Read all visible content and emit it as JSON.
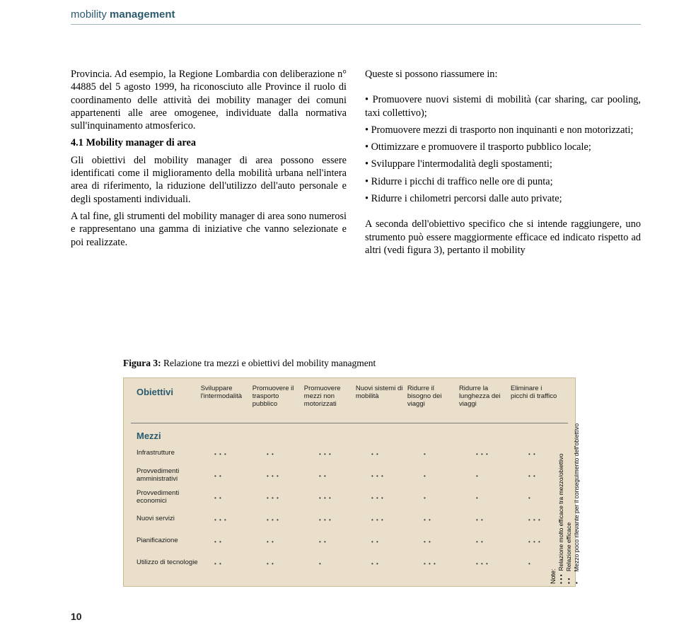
{
  "header": {
    "light": "mobility ",
    "bold": "management"
  },
  "left_col": {
    "p1": "Provincia. Ad esempio, la Regione Lombardia con deliberazione n° 44885 del 5 agosto 1999, ha riconosciuto alle Province il ruolo di coordinamento delle attività dei mobility manager dei comuni appartenenti alle aree omogenee, individuate dalla normativa sull'inquinamento atmosferico.",
    "sub": "4.1 Mobility manager di area",
    "p2": "Gli obiettivi del mobility manager di area possono essere identificati come il miglioramento della mobilità urbana nell'intera area di riferimento, la riduzione dell'utilizzo dell'auto personale e degli spostamenti individuali.",
    "p3": "A tal fine, gli strumenti del mobility manager di area sono numerosi e rappresentano una gamma di iniziative che vanno selezionate e poi realizzate."
  },
  "right_col": {
    "intro": "Queste si possono riassumere in:",
    "b1": "• Promuovere nuovi sistemi di mobilità (car sharing, car pooling, taxi collettivo);",
    "b2": "• Promuovere mezzi di trasporto non inquinanti e non motorizzati;",
    "b3": "• Ottimizzare e promuovere il trasporto pubblico locale;",
    "b4": "• Sviluppare l'intermodalità degli spostamenti;",
    "b5": "• Ridurre i picchi di traffico nelle ore di punta;",
    "b6": "• Ridurre i chilometri percorsi dalle auto private;",
    "p2": "A seconda dell'obiettivo specifico che si intende raggiungere, uno strumento può essere maggiormente efficace ed indicato rispetto ad altri (vedi figura 3), pertanto il mobility"
  },
  "figure": {
    "caption_bold": "Figura 3: ",
    "caption_rest": "Relazione tra mezzi e obiettivi del mobility managment",
    "obiettivi_label": "Obiettivi",
    "mezzi_label": "Mezzi",
    "cols": [
      "Sviluppare l'intermodalità",
      "Promuovere il trasporto pubblico",
      "Promuovere mezzi non motorizzati",
      "Nuovi sistemi di mobilità",
      "Ridurre il bisogno dei viaggi",
      "Ridurre la lunghezza dei viaggi",
      "Eliminare i picchi di traffico"
    ],
    "rows": [
      {
        "label": "Infrastrutture",
        "vals": [
          3,
          2,
          3,
          2,
          1,
          3,
          2
        ]
      },
      {
        "label": "Provvedimenti amministrativi",
        "vals": [
          2,
          3,
          2,
          3,
          1,
          1,
          2
        ]
      },
      {
        "label": "Provvedimenti economici",
        "vals": [
          2,
          3,
          3,
          3,
          1,
          1,
          1
        ]
      },
      {
        "label": "Nuovi servizi",
        "vals": [
          3,
          3,
          3,
          3,
          2,
          2,
          3
        ]
      },
      {
        "label": "Pianificazione",
        "vals": [
          2,
          2,
          2,
          2,
          2,
          2,
          3
        ]
      },
      {
        "label": "Utilizzo di tecnologie",
        "vals": [
          2,
          2,
          1,
          2,
          3,
          3,
          1
        ]
      }
    ],
    "note_label": "Note:",
    "legend1": "Relazione molto efficace tra mezzo/obiettivo",
    "legend2": "Relazione efficace",
    "legend3": "Mezzo poco rilevante per il conseguimento dell'obiettivo"
  },
  "page_number": "10"
}
